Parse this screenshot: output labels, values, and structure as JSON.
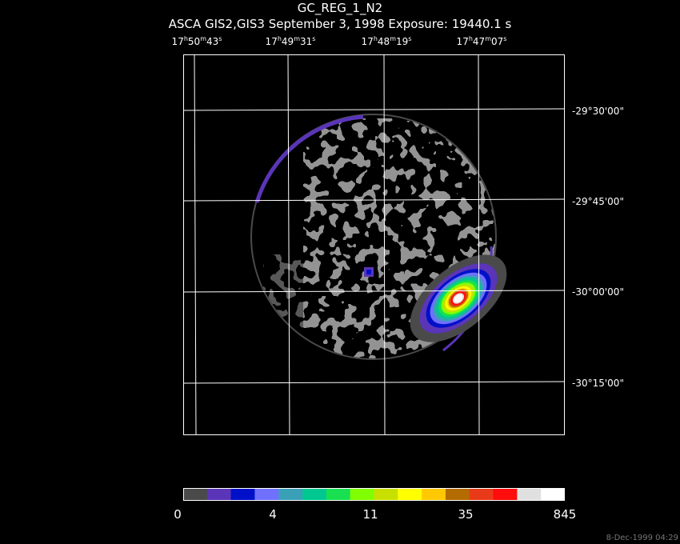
{
  "header": {
    "title": "GC_REG_1_N2",
    "subtitle": "ASCA GIS2,GIS3 September 3, 1998 Exposure: 19440.1 s"
  },
  "axes": {
    "ra_labels": [
      {
        "h": "17",
        "m": "50",
        "s": "43"
      },
      {
        "h": "17",
        "m": "49",
        "s": "31"
      },
      {
        "h": "17",
        "m": "48",
        "s": "19"
      },
      {
        "h": "17",
        "m": "47",
        "s": "07"
      }
    ],
    "dec_labels": [
      "-29°30'00\"",
      "-29°45'00\"",
      "-30°00'00\"",
      "-30°15'00\""
    ]
  },
  "colorbar": {
    "colors": [
      "#4a4a4a",
      "#5a35b8",
      "#0010c8",
      "#7070ff",
      "#3aa0b8",
      "#00c890",
      "#18e050",
      "#80ff00",
      "#c8e000",
      "#ffff00",
      "#ffc800",
      "#b46c00",
      "#e83a18",
      "#ff0c0c",
      "#e0e0e0",
      "#ffffff"
    ],
    "ticks": [
      "0",
      "4",
      "11",
      "35",
      "845"
    ]
  },
  "footer": {
    "timestamp": "8-Dec-1999 04:29"
  }
}
